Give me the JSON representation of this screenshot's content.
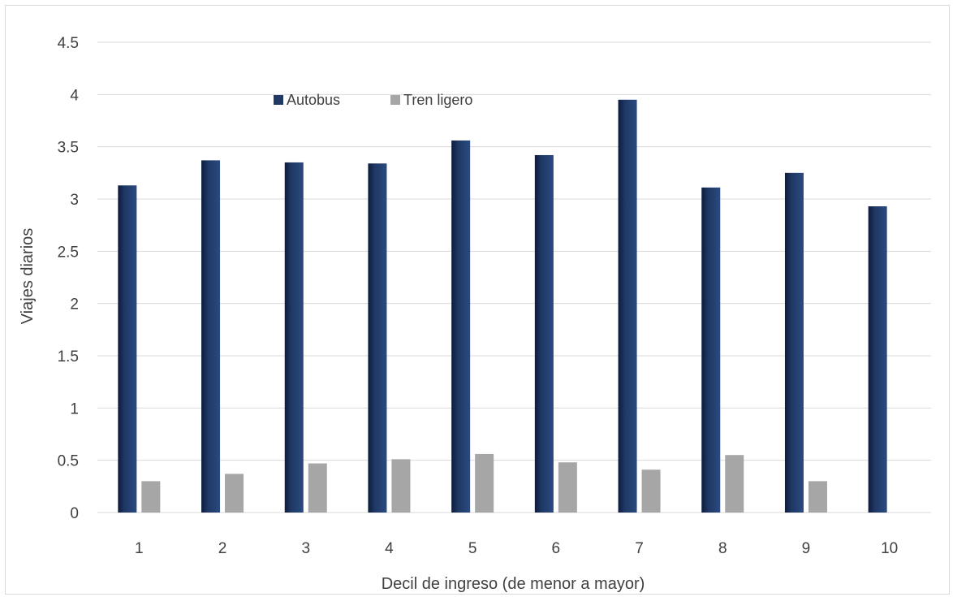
{
  "chart_data": {
    "type": "bar",
    "title": "",
    "xlabel": "Decil de ingreso (de menor a mayor)",
    "ylabel": "Viajes diarios",
    "categories": [
      "1",
      "2",
      "3",
      "4",
      "5",
      "6",
      "7",
      "8",
      "9",
      "10"
    ],
    "series": [
      {
        "name": "Autobus",
        "color": "#1f3864",
        "values": [
          3.13,
          3.37,
          3.35,
          3.34,
          3.56,
          3.42,
          3.95,
          3.11,
          3.25,
          2.93
        ]
      },
      {
        "name": "Tren ligero",
        "color": "#a6a6a6",
        "values": [
          0.3,
          0.37,
          0.47,
          0.51,
          0.56,
          0.48,
          0.41,
          0.55,
          0.3,
          0
        ]
      }
    ],
    "ylim": [
      0,
      4.5
    ],
    "yticks": [
      "0",
      "0.5",
      "1",
      "1.5",
      "2",
      "2.5",
      "3",
      "3.5",
      "4",
      "4.5"
    ],
    "grid": true,
    "legend": "top-center"
  }
}
